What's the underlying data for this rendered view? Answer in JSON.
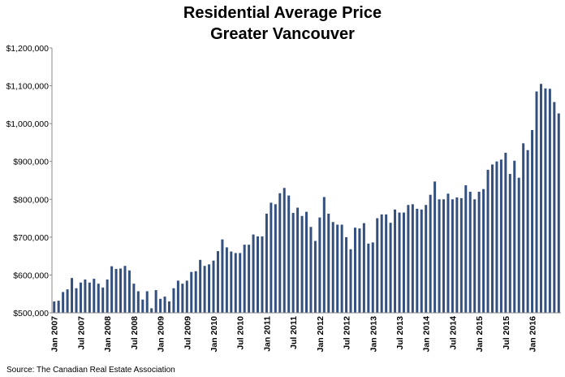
{
  "chart_data": {
    "type": "bar",
    "title": "Residential Average Price",
    "subtitle": "Greater Vancouver",
    "xlabel": "",
    "ylabel": "",
    "ylim": [
      500000,
      1200000
    ],
    "yticks": [
      500000,
      600000,
      700000,
      800000,
      900000,
      1000000,
      1100000,
      1200000
    ],
    "ytick_labels": [
      "$500,000",
      "$600,000",
      "$700,000",
      "$800,000",
      "$900,000",
      "$1,000,000",
      "$1,100,000",
      "$1,200,000"
    ],
    "x_tick_labels": [
      "Jan 2007",
      "Jul 2007",
      "Jan 2008",
      "Jul 2008",
      "Jan 2009",
      "Jul 2009",
      "Jan 2010",
      "Jul 2010",
      "Jan 2011",
      "Jul 2011",
      "Jan 2012",
      "Jul 2012",
      "Jan 2013",
      "Jul 2013",
      "Jan 2014",
      "Jul 2014",
      "Jan 2015",
      "Jul 2015",
      "Jan 2016"
    ],
    "x_tick_every": 6,
    "start_label": "Jan 2007",
    "gridlines": false,
    "bar_color": "#34507f",
    "values": [
      530000,
      532000,
      555000,
      562000,
      592000,
      565000,
      580000,
      588000,
      580000,
      590000,
      577000,
      567000,
      588000,
      623000,
      616000,
      617000,
      624000,
      612000,
      577000,
      557000,
      535000,
      557000,
      512000,
      560000,
      537000,
      543000,
      530000,
      565000,
      585000,
      577000,
      585000,
      608000,
      610000,
      640000,
      624000,
      628000,
      638000,
      663000,
      694000,
      673000,
      662000,
      658000,
      658000,
      680000,
      680000,
      707000,
      702000,
      702000,
      762000,
      791000,
      787000,
      816000,
      830000,
      810000,
      764000,
      778000,
      756000,
      767000,
      727000,
      690000,
      752000,
      806000,
      762000,
      740000,
      733000,
      733000,
      700000,
      668000,
      725000,
      723000,
      737000,
      683000,
      686000,
      750000,
      760000,
      760000,
      738000,
      773000,
      765000,
      765000,
      785000,
      787000,
      775000,
      773000,
      785000,
      812000,
      847000,
      800000,
      800000,
      815000,
      800000,
      805000,
      803000,
      837000,
      820000,
      800000,
      820000,
      827000,
      878000,
      892000,
      900000,
      905000,
      923000,
      867000,
      902000,
      857000,
      948000,
      930000,
      983000,
      1085000,
      1105000,
      1093000,
      1092000,
      1057000,
      1027000
    ]
  },
  "source_text": "Source: The Canadian Real Estate Association"
}
